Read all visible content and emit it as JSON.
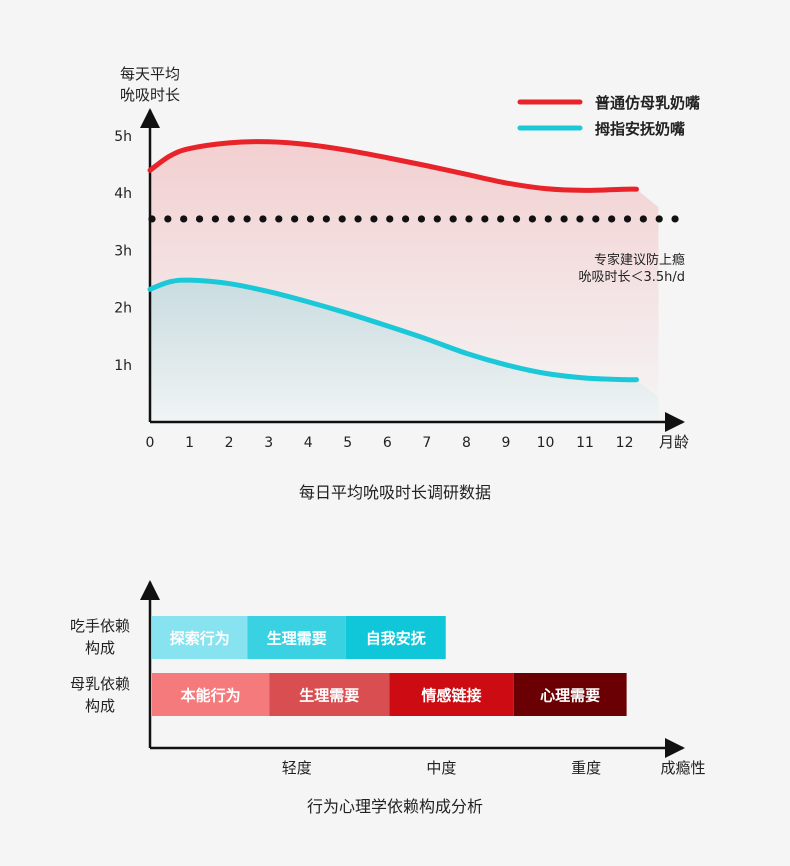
{
  "chart_data": [
    {
      "type": "line",
      "title": "每日平均吮吸时长调研数据",
      "ylabel_line1": "每天平均",
      "ylabel_line2": "吮吸时长",
      "xlabel": "月龄",
      "x_ticks": [
        "0",
        "1",
        "2",
        "3",
        "4",
        "5",
        "6",
        "7",
        "8",
        "9",
        "10",
        "11",
        "12"
      ],
      "y_ticks": [
        {
          "value": 1,
          "label": "1h"
        },
        {
          "value": 2,
          "label": "2h"
        },
        {
          "value": 3,
          "label": "3h"
        },
        {
          "value": 4,
          "label": "4h"
        },
        {
          "value": 5,
          "label": "5h"
        }
      ],
      "xlim": [
        0,
        13.4
      ],
      "ylim": [
        0,
        5.65
      ],
      "legend_position": "top-right",
      "series": [
        {
          "name": "普通仿母乳奶嘴",
          "color": "#e8232a",
          "x": [
            0,
            0.5,
            1,
            2,
            3,
            4,
            5,
            6,
            7,
            8,
            9,
            10,
            11,
            12,
            12.3
          ],
          "y": [
            4.4,
            4.65,
            4.78,
            4.88,
            4.9,
            4.85,
            4.75,
            4.62,
            4.48,
            4.33,
            4.18,
            4.08,
            4.05,
            4.07,
            4.07
          ]
        },
        {
          "name": "拇指安抚奶嘴",
          "color": "#1bc8d8",
          "x": [
            0,
            0.5,
            1,
            2,
            3,
            4,
            5,
            6,
            7,
            8,
            9,
            10,
            11,
            12,
            12.3
          ],
          "y": [
            2.32,
            2.45,
            2.48,
            2.42,
            2.28,
            2.1,
            1.9,
            1.68,
            1.45,
            1.2,
            1.0,
            0.85,
            0.77,
            0.74,
            0.74
          ]
        }
      ],
      "reference_line": {
        "value": 3.55,
        "label_line1": "专家建议防上瘾",
        "label_line2": "吮吸时长＜3.5h/d"
      }
    },
    {
      "type": "bar",
      "title": "行为心理学依赖构成分析",
      "xlabel": "成瘾性",
      "x_ticks": [
        {
          "value": 1,
          "label": "轻度"
        },
        {
          "value": 2,
          "label": "中度"
        },
        {
          "value": 3,
          "label": "重度"
        }
      ],
      "xlim": [
        0,
        3.75
      ],
      "rows": [
        {
          "label_line1": "吃手依赖",
          "label_line2": "构成",
          "segments": [
            {
              "label": "探索行为",
              "start": 0,
              "end": 0.66,
              "color": "#87e3ef"
            },
            {
              "label": "生理需要",
              "start": 0.66,
              "end": 1.34,
              "color": "#3ad2e3"
            },
            {
              "label": "自我安抚",
              "start": 1.34,
              "end": 2.03,
              "color": "#0fc7d8"
            }
          ]
        },
        {
          "label_line1": "母乳依赖",
          "label_line2": "构成",
          "segments": [
            {
              "label": "本能行为",
              "start": 0,
              "end": 0.81,
              "color": "#f57a7c"
            },
            {
              "label": "生理需要",
              "start": 0.81,
              "end": 1.64,
              "color": "#d94e50"
            },
            {
              "label": "情感链接",
              "start": 1.64,
              "end": 2.5,
              "color": "#cc0b12"
            },
            {
              "label": "心理需要",
              "start": 2.5,
              "end": 3.28,
              "color": "#6b0004"
            }
          ]
        }
      ]
    }
  ]
}
